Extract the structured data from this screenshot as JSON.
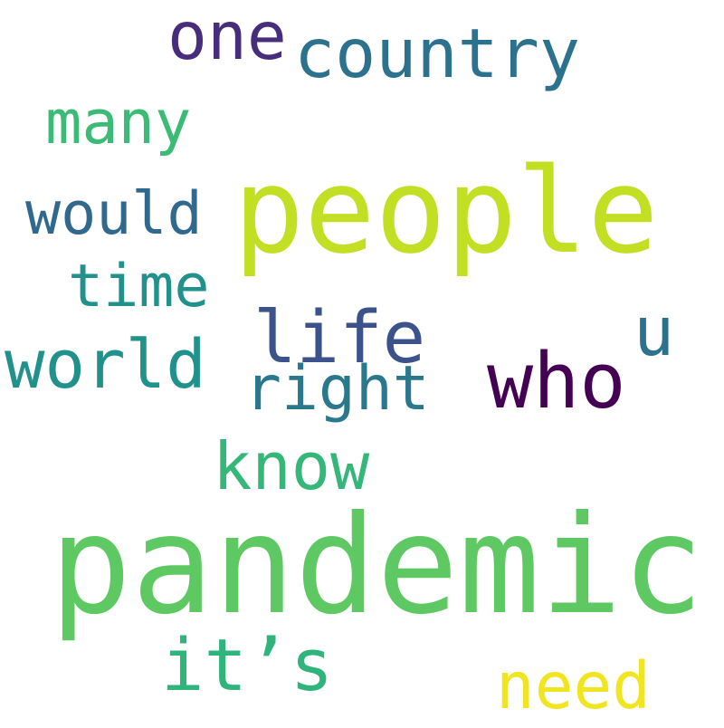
{
  "words": [
    {
      "text": "pandemic",
      "color": "#5ec962"
    },
    {
      "text": "people",
      "color": "#c2df23"
    },
    {
      "text": "country",
      "color": "#2c728e"
    },
    {
      "text": "one",
      "color": "#472d7b"
    },
    {
      "text": "many",
      "color": "#3bbb75"
    },
    {
      "text": "would",
      "color": "#31688e"
    },
    {
      "text": "time",
      "color": "#21918c"
    },
    {
      "text": "world",
      "color": "#21918c"
    },
    {
      "text": "life",
      "color": "#3b528b"
    },
    {
      "text": "right",
      "color": "#2a788e"
    },
    {
      "text": "u",
      "color": "#2c728e"
    },
    {
      "text": "who",
      "color": "#440154"
    },
    {
      "text": "know",
      "color": "#35b779"
    },
    {
      "text": "it’s",
      "color": "#2fb47c"
    },
    {
      "text": "need",
      "color": "#f0e51f"
    }
  ]
}
